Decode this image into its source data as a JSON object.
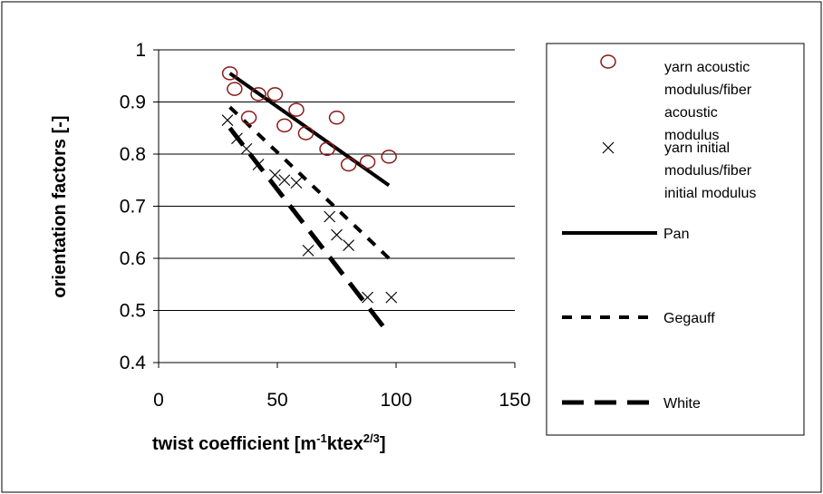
{
  "chart_data": {
    "type": "scatter",
    "title": "",
    "xlabel": "twist coefficient  [m-1ktex2/3]",
    "ylabel": "orientation factors [-]",
    "xlim": [
      0,
      150
    ],
    "ylim": [
      0.4,
      1.0
    ],
    "x_ticks": [
      "0",
      "50",
      "100",
      "150"
    ],
    "y_ticks": [
      "0.4",
      "0.5",
      "0.6",
      "0.7",
      "0.8",
      "0.9",
      "1"
    ],
    "grid": "horizontal",
    "legend_position": "right",
    "xlabel_parts": {
      "main": "twist coefficient  [m",
      "sup1": "-1",
      "mid": "ktex",
      "sup2": "2/3",
      "end": "]"
    },
    "series": [
      {
        "name": "yarn acoustic modulus/fiber acoustic modulus",
        "legend_lines": [
          "yarn acoustic",
          "modulus/fiber",
          "acoustic",
          "modulus"
        ],
        "marker": "circle",
        "color": "#8b1a1a",
        "points": [
          [
            30,
            0.955
          ],
          [
            32,
            0.925
          ],
          [
            38,
            0.87
          ],
          [
            42,
            0.915
          ],
          [
            49,
            0.915
          ],
          [
            53,
            0.855
          ],
          [
            58,
            0.885
          ],
          [
            62,
            0.84
          ],
          [
            71,
            0.81
          ],
          [
            75,
            0.87
          ],
          [
            80,
            0.78
          ],
          [
            88,
            0.785
          ],
          [
            97,
            0.795
          ]
        ]
      },
      {
        "name": "yarn initial modulus/fiber initial modulus",
        "legend_lines": [
          "yarn initial",
          "modulus/fiber",
          "initial modulus"
        ],
        "marker": "x",
        "color": "#000000",
        "points": [
          [
            29,
            0.865
          ],
          [
            33,
            0.83
          ],
          [
            37,
            0.81
          ],
          [
            42,
            0.78
          ],
          [
            49,
            0.76
          ],
          [
            53,
            0.75
          ],
          [
            58,
            0.745
          ],
          [
            63,
            0.615
          ],
          [
            72,
            0.68
          ],
          [
            75,
            0.645
          ],
          [
            80,
            0.625
          ],
          [
            88,
            0.525
          ],
          [
            98,
            0.525
          ]
        ]
      },
      {
        "name": "Pan",
        "legend_lines": [
          "Pan"
        ],
        "line_style": "solid",
        "color": "#000000",
        "points": [
          [
            30,
            0.955
          ],
          [
            97,
            0.74
          ]
        ]
      },
      {
        "name": "Gegauff",
        "legend_lines": [
          "Gegauff"
        ],
        "line_style": "dotted",
        "color": "#000000",
        "points": [
          [
            30,
            0.89
          ],
          [
            97,
            0.6
          ]
        ]
      },
      {
        "name": "White",
        "legend_lines": [
          "White"
        ],
        "line_style": "dashed",
        "color": "#000000",
        "points": [
          [
            30,
            0.85
          ],
          [
            97,
            0.455
          ]
        ]
      }
    ]
  }
}
